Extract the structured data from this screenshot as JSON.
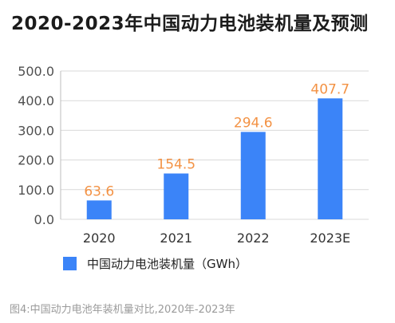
{
  "title": "2020-2023年中国动力电池装机量及预测",
  "caption": "图4:中国动力电池年装机量对比,2020年-2023年",
  "colors": {
    "bar": "#3b84f8",
    "value_label": "#f39244",
    "axis_text": "#505050",
    "grid": "#d9d9d9"
  },
  "chart_data": {
    "type": "bar",
    "categories": [
      "2020",
      "2021",
      "2022",
      "2023E"
    ],
    "series": [
      {
        "name": "中国动力电池装机量（GWh）",
        "values": [
          63.6,
          154.5,
          294.6,
          407.7
        ]
      }
    ],
    "data_labels": [
      "63.6",
      "154.5",
      "294.6",
      "407.7"
    ],
    "y_ticks": [
      "0.0",
      "100.0",
      "200.0",
      "300.0",
      "400.0",
      "500.0"
    ],
    "ylim": [
      0,
      500
    ],
    "grid": true,
    "legend": "bottom-left"
  }
}
